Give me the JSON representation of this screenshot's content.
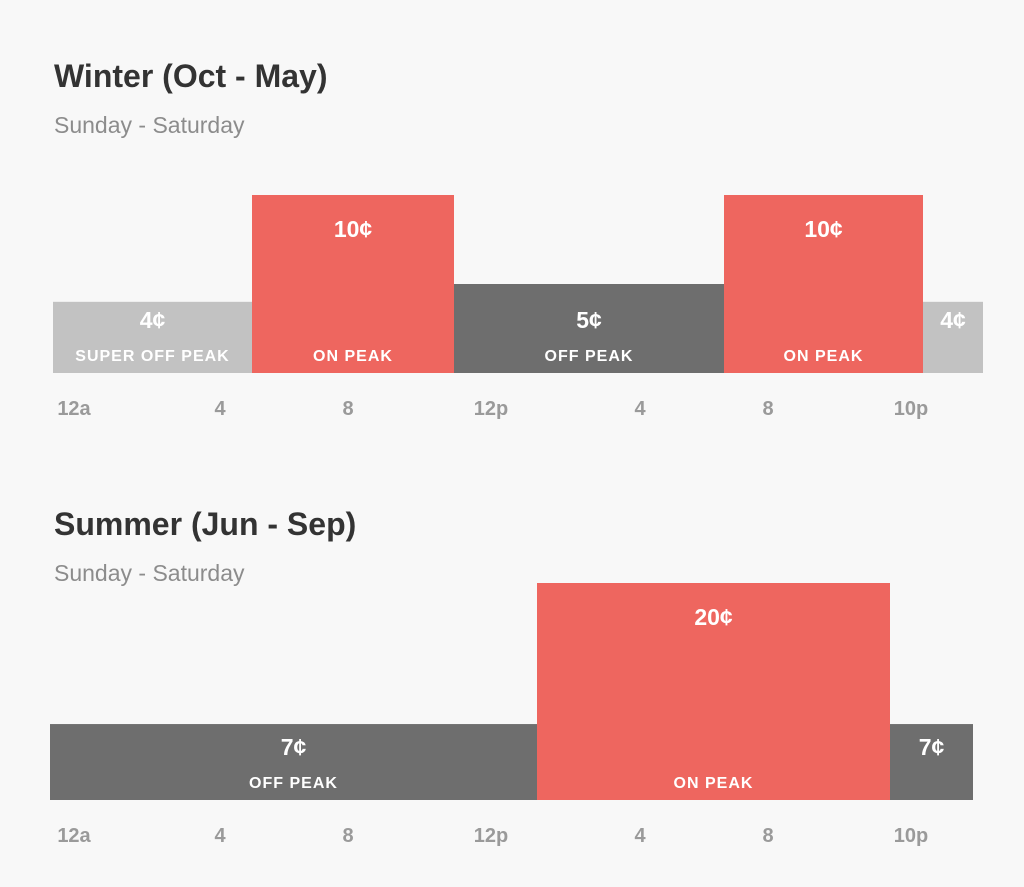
{
  "winter": {
    "title": "Winter (Oct - May)",
    "subtitle": "Sunday - Saturday"
  },
  "summer": {
    "title": "Summer (Jun - Sep)",
    "subtitle": "Sunday - Saturday"
  },
  "colors": {
    "on_peak": "#ee665f",
    "off_peak": "#6e6e6e",
    "super_off_peak": "#c2c2c2",
    "tick_text": "#9a9a9a",
    "title_text": "#333333",
    "subtitle_text": "#8c8c8c",
    "background": "#f8f8f8"
  },
  "chart_data": [
    {
      "type": "bar",
      "title": "Winter (Oct - May)",
      "subtitle": "Sunday - Saturday",
      "x_ticks": [
        "12a",
        "4",
        "8",
        "12p",
        "4",
        "8",
        "10p"
      ],
      "y_unit": "¢ per kWh",
      "segments": [
        {
          "start_hour": 0,
          "end_hour": 6.5,
          "value": 4,
          "price_label": "4¢",
          "period_label": "SUPER OFF PEAK",
          "category": "super_off_peak"
        },
        {
          "start_hour": 6.5,
          "end_hour": 13,
          "value": 10,
          "price_label": "10¢",
          "period_label": "ON PEAK",
          "category": "on_peak"
        },
        {
          "start_hour": 13,
          "end_hour": 17,
          "value": 5,
          "price_label": "5¢",
          "period_label": "OFF PEAK",
          "category": "off_peak"
        },
        {
          "start_hour": 17,
          "end_hour": 22,
          "value": 10,
          "price_label": "10¢",
          "period_label": "ON PEAK",
          "category": "on_peak"
        },
        {
          "start_hour": 22,
          "end_hour": 24,
          "value": 4,
          "price_label": "4¢",
          "period_label": "",
          "category": "super_off_peak"
        }
      ]
    },
    {
      "type": "bar",
      "title": "Summer (Jun - Sep)",
      "subtitle": "Sunday - Saturday",
      "x_ticks": [
        "12a",
        "4",
        "8",
        "12p",
        "4",
        "8",
        "10p"
      ],
      "y_unit": "¢ per kWh",
      "segments": [
        {
          "start_hour": 0,
          "end_hour": 14,
          "value": 7,
          "price_label": "7¢",
          "period_label": "OFF PEAK",
          "category": "off_peak"
        },
        {
          "start_hour": 14,
          "end_hour": 21,
          "value": 20,
          "price_label": "20¢",
          "period_label": "ON PEAK",
          "category": "on_peak"
        },
        {
          "start_hour": 21,
          "end_hour": 24,
          "value": 7,
          "price_label": "7¢",
          "period_label": "",
          "category": "off_peak"
        }
      ]
    }
  ]
}
